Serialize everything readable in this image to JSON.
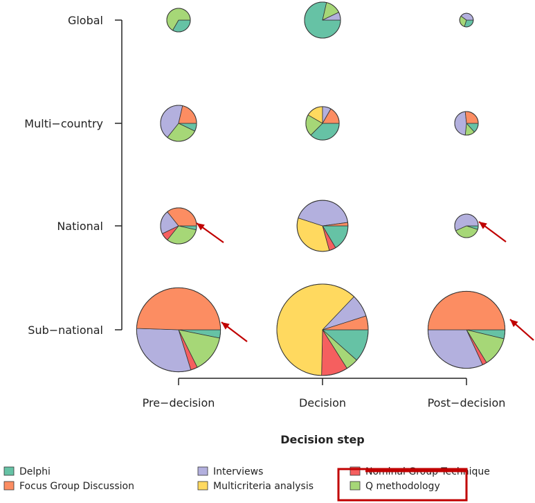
{
  "chart_data": {
    "type": "pie",
    "title": "",
    "xlabel": "Decision step",
    "ylabel": "",
    "categories": [
      "Delphi",
      "Focus Group Discussion",
      "Interviews",
      "Multicriteria analysis",
      "Nominal Group Technique",
      "Q methodology"
    ],
    "x_levels": [
      "Pre−decision",
      "Decision",
      "Post−decision"
    ],
    "y_levels": [
      "Global",
      "Multi−country",
      "National",
      "Sub−national"
    ],
    "colors": {
      "Delphi": "#66c2a5",
      "Focus Group Discussion": "#fc8d62",
      "Interviews": "#b3b0de",
      "Multicriteria analysis": "#ffd95f",
      "Nominal Group Technique": "#f55f5f",
      "Q methodology": "#a6d777"
    },
    "pies": [
      {
        "x": "Pre−decision",
        "y": "Global",
        "total": 3,
        "values": {
          "Delphi": 1,
          "Q methodology": 2
        }
      },
      {
        "x": "Decision",
        "y": "Global",
        "total": 7,
        "values": {
          "Delphi": 5.5,
          "Interviews": 0.5,
          "Q methodology": 1
        }
      },
      {
        "x": "Post−decision",
        "y": "Global",
        "total": 1,
        "values": {
          "Delphi": 0.3,
          "Interviews": 0.4,
          "Q methodology": 0.3
        }
      },
      {
        "x": "Pre−decision",
        "y": "Multi−country",
        "total": 7,
        "values": {
          "Delphi": 0.5,
          "Focus Group Discussion": 1.5,
          "Interviews": 3,
          "Q methodology": 2
        }
      },
      {
        "x": "Decision",
        "y": "Multi−country",
        "total": 6,
        "values": {
          "Delphi": 2.25,
          "Focus Group Discussion": 1,
          "Interviews": 0.5,
          "Multicriteria analysis": 1,
          "Q methodology": 1.25
        }
      },
      {
        "x": "Post−decision",
        "y": "Multi−country",
        "total": 3,
        "values": {
          "Delphi": 0.4,
          "Focus Group Discussion": 0.8,
          "Interviews": 1.4,
          "Q methodology": 0.4
        }
      },
      {
        "x": "Pre−decision",
        "y": "National",
        "total": 7,
        "values": {
          "Delphi": 0.25,
          "Focus Group Discussion": 2.5,
          "Interviews": 1.5,
          "Nominal Group Technique": 0.5,
          "Q methodology": 2.25
        }
      },
      {
        "x": "Decision",
        "y": "National",
        "total": 14,
        "values": {
          "Delphi": 2.3,
          "Focus Group Discussion": 0.3,
          "Interviews": 6,
          "Multicriteria analysis": 4.8,
          "Nominal Group Technique": 0.6
        }
      },
      {
        "x": "Post−decision",
        "y": "National",
        "total": 3,
        "values": {
          "Delphi": 0.15,
          "Interviews": 1.7,
          "Q methodology": 1.15
        }
      },
      {
        "x": "Pre−decision",
        "y": "Sub−national",
        "total": 38,
        "values": {
          "Delphi": 1.2,
          "Focus Group Discussion": 18.8,
          "Interviews": 11.5,
          "Nominal Group Technique": 1,
          "Q methodology": 5.5
        }
      },
      {
        "x": "Decision",
        "y": "Sub−national",
        "total": 45,
        "values": {
          "Delphi": 5.2,
          "Focus Group Discussion": 2.2,
          "Interviews": 3.6,
          "Multicriteria analysis": 27.8,
          "Nominal Group Technique": 4.2,
          "Q methodology": 2
        }
      },
      {
        "x": "Post−decision",
        "y": "Sub−national",
        "total": 32,
        "values": {
          "Delphi": 1.2,
          "Focus Group Discussion": 16,
          "Interviews": 10.2,
          "Nominal Group Technique": 0.6,
          "Q methodology": 4
        }
      }
    ],
    "annotations": [
      "arrow",
      "arrow",
      "arrow",
      "arrow",
      "arrow",
      "arrow",
      "legend-highlight-box"
    ],
    "annotation_targets": [
      [
        "Pre−decision",
        "National"
      ],
      [
        "Post−decision",
        "National"
      ],
      [
        "Pre−decision",
        "Sub−national"
      ],
      [
        "Post−decision",
        "Sub−national"
      ]
    ],
    "highlighted_legend_entry": "Q methodology",
    "annotation_color": "#c00000",
    "legend_position": "bottom",
    "grid": false
  }
}
